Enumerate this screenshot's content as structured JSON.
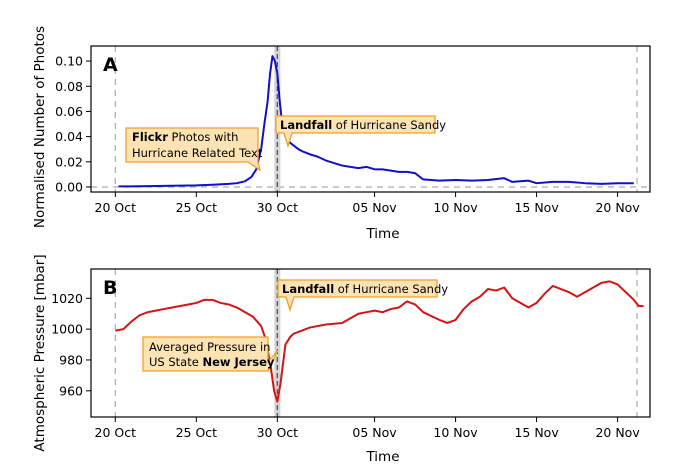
{
  "colors": {
    "series_a": "#1010c8",
    "series_b": "#d41414",
    "annotation_fill": "#fce3b4",
    "annotation_stroke": "#f0a028",
    "landfall_line": "#555555",
    "guide_line": "#aaaaaa"
  },
  "chart_data": [
    {
      "type": "line",
      "panel_label": "A",
      "xlabel": "Time",
      "ylabel": "Normalised Number of Photos",
      "ylim": [
        -0.004,
        0.112
      ],
      "xlim_days": [
        -1.5,
        33
      ],
      "x_ticks": [
        {
          "day": 0,
          "label": "20 Oct"
        },
        {
          "day": 5,
          "label": "25 Oct"
        },
        {
          "day": 10,
          "label": "30 Oct"
        },
        {
          "day": 16,
          "label": "05 Nov"
        },
        {
          "day": 21,
          "label": "10 Nov"
        },
        {
          "day": 26,
          "label": "15 Nov"
        },
        {
          "day": 31,
          "label": "20 Nov"
        }
      ],
      "y_ticks": [
        {
          "value": 0.0,
          "label": "0.00"
        },
        {
          "value": 0.02,
          "label": "0.02"
        },
        {
          "value": 0.04,
          "label": "0.04"
        },
        {
          "value": 0.06,
          "label": "0.06"
        },
        {
          "value": 0.08,
          "label": "0.08"
        },
        {
          "value": 0.1,
          "label": "0.10"
        }
      ],
      "guides": {
        "hline": 0.0,
        "vlines_days": [
          0,
          32.2
        ]
      },
      "landfall_day": 10.0,
      "series": [
        {
          "color": "#1010c8",
          "points": [
            [
              0.2,
              0.0005
            ],
            [
              1,
              0.0005
            ],
            [
              2,
              0.0007
            ],
            [
              3,
              0.0009
            ],
            [
              4,
              0.0011
            ],
            [
              5,
              0.0013
            ],
            [
              6,
              0.0018
            ],
            [
              7,
              0.0025
            ],
            [
              7.5,
              0.003
            ],
            [
              8,
              0.0045
            ],
            [
              8.4,
              0.008
            ],
            [
              8.7,
              0.014
            ],
            [
              9.0,
              0.03
            ],
            [
              9.2,
              0.05
            ],
            [
              9.4,
              0.068
            ],
            [
              9.55,
              0.09
            ],
            [
              9.7,
              0.104
            ],
            [
              9.85,
              0.1
            ],
            [
              10.0,
              0.09
            ],
            [
              10.15,
              0.068
            ],
            [
              10.3,
              0.05
            ],
            [
              10.5,
              0.04
            ],
            [
              10.8,
              0.035
            ],
            [
              11.0,
              0.033
            ],
            [
              11.3,
              0.03
            ],
            [
              11.6,
              0.028
            ],
            [
              12.0,
              0.026
            ],
            [
              12.5,
              0.024
            ],
            [
              13.0,
              0.021
            ],
            [
              13.5,
              0.019
            ],
            [
              14.0,
              0.017
            ],
            [
              14.5,
              0.016
            ],
            [
              15.0,
              0.015
            ],
            [
              15.5,
              0.016
            ],
            [
              16.0,
              0.014
            ],
            [
              16.5,
              0.014
            ],
            [
              17.0,
              0.013
            ],
            [
              17.5,
              0.012
            ],
            [
              18.0,
              0.012
            ],
            [
              18.5,
              0.011
            ],
            [
              19.0,
              0.006
            ],
            [
              20.0,
              0.005
            ],
            [
              21.0,
              0.0055
            ],
            [
              22.0,
              0.005
            ],
            [
              23.0,
              0.0055
            ],
            [
              24.0,
              0.007
            ],
            [
              24.5,
              0.004
            ],
            [
              25.5,
              0.005
            ],
            [
              26.0,
              0.003
            ],
            [
              27.0,
              0.004
            ],
            [
              28.0,
              0.004
            ],
            [
              29.0,
              0.003
            ],
            [
              30.0,
              0.0025
            ],
            [
              31.0,
              0.003
            ],
            [
              32.0,
              0.003
            ]
          ]
        }
      ],
      "annotations": [
        {
          "bold": "Flickr",
          "rest": " Photos with",
          "line2": "Hurricane Related Text"
        },
        {
          "bold": "Landfall",
          "rest": " of Hurricane Sandy"
        }
      ]
    },
    {
      "type": "line",
      "panel_label": "B",
      "xlabel": "Time",
      "ylabel": "Atmospheric Pressure [mbar]",
      "ylim": [
        943,
        1039
      ],
      "xlim_days": [
        -1.5,
        33
      ],
      "x_ticks": [
        {
          "day": 0,
          "label": "20 Oct"
        },
        {
          "day": 5,
          "label": "25 Oct"
        },
        {
          "day": 10,
          "label": "30 Oct"
        },
        {
          "day": 16,
          "label": "05 Nov"
        },
        {
          "day": 21,
          "label": "10 Nov"
        },
        {
          "day": 26,
          "label": "15 Nov"
        },
        {
          "day": 31,
          "label": "20 Nov"
        }
      ],
      "y_ticks": [
        {
          "value": 960,
          "label": "960"
        },
        {
          "value": 980,
          "label": "980"
        },
        {
          "value": 1000,
          "label": "1000"
        },
        {
          "value": 1020,
          "label": "1020"
        }
      ],
      "guides": {
        "hline": null,
        "vlines_days": [
          0,
          32.2
        ]
      },
      "landfall_day": 10.0,
      "series": [
        {
          "color": "#d41414",
          "points": [
            [
              0.0,
              999
            ],
            [
              0.5,
              1000
            ],
            [
              1.0,
              1005
            ],
            [
              1.5,
              1009
            ],
            [
              2.0,
              1011
            ],
            [
              2.5,
              1012
            ],
            [
              3.0,
              1013
            ],
            [
              3.5,
              1014
            ],
            [
              4.0,
              1015
            ],
            [
              4.5,
              1016
            ],
            [
              5.0,
              1017
            ],
            [
              5.5,
              1019
            ],
            [
              6.0,
              1019
            ],
            [
              6.5,
              1017
            ],
            [
              7.0,
              1016
            ],
            [
              7.5,
              1014
            ],
            [
              8.0,
              1011
            ],
            [
              8.5,
              1008
            ],
            [
              9.0,
              1002
            ],
            [
              9.3,
              993
            ],
            [
              9.6,
              975
            ],
            [
              9.8,
              960
            ],
            [
              10.0,
              953
            ],
            [
              10.2,
              965
            ],
            [
              10.5,
              990
            ],
            [
              10.8,
              995
            ],
            [
              11.0,
              997
            ],
            [
              11.5,
              999
            ],
            [
              12.0,
              1001
            ],
            [
              13.0,
              1003
            ],
            [
              14.0,
              1004
            ],
            [
              14.5,
              1007
            ],
            [
              15.0,
              1010
            ],
            [
              15.5,
              1011
            ],
            [
              16.0,
              1012
            ],
            [
              16.5,
              1011
            ],
            [
              17.0,
              1013
            ],
            [
              17.5,
              1014
            ],
            [
              18.0,
              1018
            ],
            [
              18.5,
              1016
            ],
            [
              19.0,
              1011
            ],
            [
              20.0,
              1006
            ],
            [
              20.5,
              1004
            ],
            [
              21.0,
              1006
            ],
            [
              21.5,
              1013
            ],
            [
              22.0,
              1018
            ],
            [
              22.5,
              1021
            ],
            [
              23.0,
              1026
            ],
            [
              23.5,
              1025
            ],
            [
              24.0,
              1027
            ],
            [
              24.5,
              1020
            ],
            [
              25.0,
              1017
            ],
            [
              25.5,
              1014
            ],
            [
              26.0,
              1017
            ],
            [
              26.5,
              1023
            ],
            [
              27.0,
              1028
            ],
            [
              27.5,
              1026
            ],
            [
              28.0,
              1024
            ],
            [
              28.5,
              1021
            ],
            [
              29.0,
              1024
            ],
            [
              29.5,
              1027
            ],
            [
              30.0,
              1030
            ],
            [
              30.5,
              1031
            ],
            [
              31.0,
              1029
            ],
            [
              31.5,
              1024
            ],
            [
              32.0,
              1019
            ],
            [
              32.3,
              1015
            ],
            [
              32.6,
              1015
            ]
          ]
        }
      ],
      "annotations": [
        {
          "line1": "Averaged Pressure in",
          "rest": "US State ",
          "bold": "New Jersey"
        },
        {
          "bold": "Landfall",
          "rest": " of Hurricane Sandy"
        }
      ]
    }
  ]
}
